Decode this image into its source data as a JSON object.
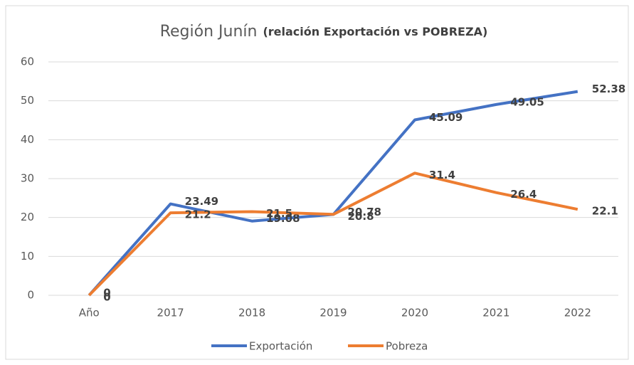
{
  "chart_data": {
    "type": "line",
    "title": "Región Junín",
    "title_note": "(relación Exportación vs POBREZA)",
    "categories": [
      "Año",
      "2017",
      "2018",
      "2019",
      "2020",
      "2021",
      "2022"
    ],
    "series": [
      {
        "name": "Exportación",
        "color": "#4472c4",
        "values": [
          0,
          23.49,
          19.08,
          20.78,
          45.09,
          49.05,
          52.38
        ]
      },
      {
        "name": "Pobreza",
        "color": "#ed7d31",
        "values": [
          0,
          21.2,
          21.5,
          20.8,
          31.4,
          26.4,
          22.1
        ]
      }
    ],
    "ylim": [
      0,
      60
    ],
    "yticks": [
      0,
      10,
      20,
      30,
      40,
      50,
      60
    ],
    "grid": true,
    "legend": "bottom"
  }
}
